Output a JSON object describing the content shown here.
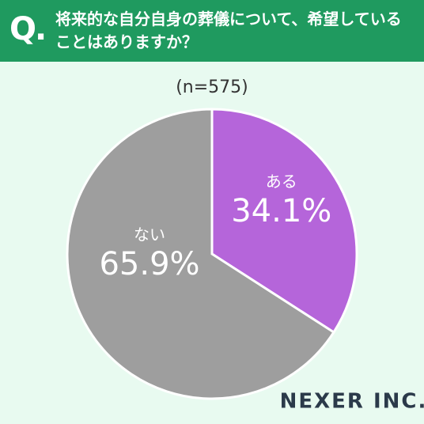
{
  "chart_data": {
    "type": "pie",
    "question_mark": "Q.",
    "title": "将来的な自分自身の葬儀について、希望していることはありますか？",
    "subtitle": "(n=575)",
    "categories": [
      "ある",
      "ない"
    ],
    "values": [
      34.1,
      65.9
    ],
    "value_labels": [
      "34.1%",
      "65.9%"
    ],
    "colors": [
      "#b565da",
      "#9e9e9e"
    ],
    "logo": "NEXER INC."
  }
}
